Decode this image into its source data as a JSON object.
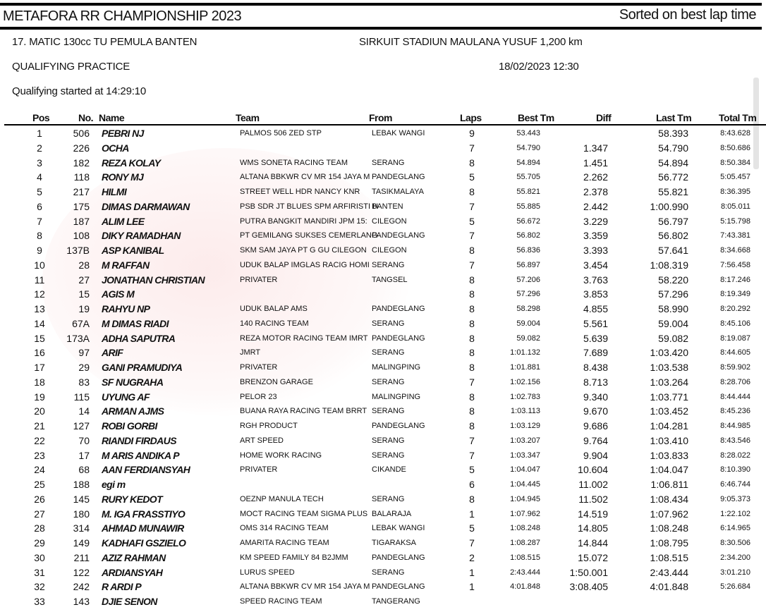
{
  "header": {
    "title": "METAFORA RR CHAMPIONSHIP 2023",
    "sorted": "Sorted on best lap time",
    "class_name": "17. MATIC 130cc TU PEMULA BANTEN",
    "circuit": "SIRKUIT STADIUN MAULANA YUSUF 1,200 km",
    "session": "QUALIFYING PRACTICE",
    "datetime": "18/02/2023 12:30",
    "started": "Qualifying started at 14:29:10"
  },
  "columns": {
    "pos": "Pos",
    "no": "No.",
    "name": "Name",
    "team": "Team",
    "from": "From",
    "laps": "Laps",
    "best": "Best Tm",
    "diff": "Diff",
    "last": "Last Tm",
    "total": "Total Tm"
  },
  "rows": [
    [
      "1",
      "506",
      "PEBRI NJ",
      "PALMOS 506 ZED STP",
      "LEBAK WANGI",
      "9",
      "53.443",
      "",
      "58.393",
      "8:43.628"
    ],
    [
      "2",
      "226",
      "OCHA",
      "",
      "",
      "7",
      "54.790",
      "1.347",
      "54.790",
      "8:50.686"
    ],
    [
      "3",
      "182",
      "REZA KOLAY",
      "WMS SONETA RACING TEAM",
      "SERANG",
      "8",
      "54.894",
      "1.451",
      "54.894",
      "8:50.384"
    ],
    [
      "4",
      "118",
      "RONY MJ",
      "ALTANA BBKWR CV MR 154 JAYA M",
      "PANDEGLANG",
      "5",
      "55.705",
      "2.262",
      "56.772",
      "5:05.457"
    ],
    [
      "5",
      "217",
      "HILMI",
      "STREET WELL HDR NANCY KNR",
      "TASIKMALAYA",
      "8",
      "55.821",
      "2.378",
      "55.821",
      "8:36.395"
    ],
    [
      "6",
      "175",
      "DIMAS DARMAWAN",
      "PSB SDR JT BLUES SPM ARFIRISTI H",
      "BANTEN",
      "7",
      "55.885",
      "2.442",
      "1:00.990",
      "8:05.011"
    ],
    [
      "7",
      "187",
      "ALIM LEE",
      "PUTRA BANGKIT MANDIRI JPM 15:",
      "CILEGON",
      "5",
      "56.672",
      "3.229",
      "56.797",
      "5:15.798"
    ],
    [
      "8",
      "108",
      "DIKY RAMADHAN",
      "PT GEMILANG SUKSES CEMERLANG",
      "PANDEGLANG",
      "7",
      "56.802",
      "3.359",
      "56.802",
      "7:43.381"
    ],
    [
      "9",
      "137B",
      "ASP KANIBAL",
      "SKM SAM JAYA PT G GU CILEGON",
      "CILEGON",
      "8",
      "56.836",
      "3.393",
      "57.641",
      "8:34.668"
    ],
    [
      "10",
      "28",
      "M RAFFAN",
      "UDUK BALAP IMGLAS RACIG HOMI",
      "SERANG",
      "7",
      "56.897",
      "3.454",
      "1:08.319",
      "7:56.458"
    ],
    [
      "11",
      "27",
      "JONATHAN CHRISTIAN",
      "PRIVATER",
      "TANGSEL",
      "8",
      "57.206",
      "3.763",
      "58.220",
      "8:17.246"
    ],
    [
      "12",
      "15",
      "AGIS M",
      "",
      "",
      "8",
      "57.296",
      "3.853",
      "57.296",
      "8:19.349"
    ],
    [
      "13",
      "19",
      "RAHYU NP",
      "UDUK BALAP AMS",
      "PANDEGLANG",
      "8",
      "58.298",
      "4.855",
      "58.990",
      "8:20.292"
    ],
    [
      "14",
      "67A",
      "M DIMAS RIADI",
      "140 RACING TEAM",
      "SERANG",
      "8",
      "59.004",
      "5.561",
      "59.004",
      "8:45.106"
    ],
    [
      "15",
      "173A",
      "ADHA SAPUTRA",
      "REZA MOTOR RACING TEAM IMRT",
      "PANDEGLANG",
      "8",
      "59.082",
      "5.639",
      "59.082",
      "8:19.087"
    ],
    [
      "16",
      "97",
      "ARIF",
      "JMRT",
      "SERANG",
      "8",
      "1:01.132",
      "7.689",
      "1:03.420",
      "8:44.605"
    ],
    [
      "17",
      "29",
      "GANI PRAMUDIYA",
      "PRIVATER",
      "MALINGPING",
      "8",
      "1:01.881",
      "8.438",
      "1:03.538",
      "8:59.902"
    ],
    [
      "18",
      "83",
      "SF NUGRAHA",
      "BRENZON GARAGE",
      "SERANG",
      "7",
      "1:02.156",
      "8.713",
      "1:03.264",
      "8:28.706"
    ],
    [
      "19",
      "115",
      "UYUNG AF",
      "PELOR 23",
      "MALINGPING",
      "8",
      "1:02.783",
      "9.340",
      "1:03.771",
      "8:44.444"
    ],
    [
      "20",
      "14",
      "ARMAN AJMS",
      "BUANA RAYA RACING TEAM BRRT",
      "SERANG",
      "8",
      "1:03.113",
      "9.670",
      "1:03.452",
      "8:45.236"
    ],
    [
      "21",
      "127",
      "ROBI GORBI",
      "RGH PRODUCT",
      "PANDEGLANG",
      "8",
      "1:03.129",
      "9.686",
      "1:04.281",
      "8:44.985"
    ],
    [
      "22",
      "70",
      "RIANDI FIRDAUS",
      "ART SPEED",
      "SERANG",
      "7",
      "1:03.207",
      "9.764",
      "1:03.410",
      "8:43.546"
    ],
    [
      "23",
      "17",
      "M ARIS ANDIKA P",
      "HOME WORK RACING",
      "SERANG",
      "7",
      "1:03.347",
      "9.904",
      "1:03.833",
      "8:28.022"
    ],
    [
      "24",
      "68",
      "AAN FERDIANSYAH",
      "PRIVATER",
      "CIKANDE",
      "5",
      "1:04.047",
      "10.604",
      "1:04.047",
      "8:10.390"
    ],
    [
      "25",
      "188",
      "egi m",
      "",
      "",
      "6",
      "1:04.445",
      "11.002",
      "1:06.811",
      "6:46.744"
    ],
    [
      "26",
      "145",
      "RURY KEDOT",
      "OEZNP MANULA TECH",
      "SERANG",
      "8",
      "1:04.945",
      "11.502",
      "1:08.434",
      "9:05.373"
    ],
    [
      "27",
      "180",
      "M. IGA FRASSTIYO",
      "MOCT RACING TEAM SIGMA PLUS",
      "BALARAJA",
      "1",
      "1:07.962",
      "14.519",
      "1:07.962",
      "1:22.102"
    ],
    [
      "28",
      "314",
      "AHMAD MUNAWIR",
      "OMS 314 RACING TEAM",
      "LEBAK WANGI",
      "5",
      "1:08.248",
      "14.805",
      "1:08.248",
      "6:14.965"
    ],
    [
      "29",
      "149",
      "KADHAFI GSZIELO",
      "AMARITA RACING TEAM",
      "TIGARAKSA",
      "7",
      "1:08.287",
      "14.844",
      "1:08.795",
      "8:30.506"
    ],
    [
      "30",
      "211",
      "AZIZ RAHMAN",
      "KM SPEED FAMILY 84 B2JMM",
      "PANDEGLANG",
      "2",
      "1:08.515",
      "15.072",
      "1:08.515",
      "2:34.200"
    ],
    [
      "31",
      "122",
      "ARDIANSYAH",
      "LURUS SPEED",
      "SERANG",
      "1",
      "2:43.444",
      "1:50.001",
      "2:43.444",
      "3:01.210"
    ],
    [
      "32",
      "242",
      "R ARDI P",
      "ALTANA BBKWR CV MR 154 JAYA M",
      "PANDEGLANG",
      "1",
      "4:01.848",
      "3:08.405",
      "4:01.848",
      "5:26.684"
    ],
    [
      "33",
      "143",
      "DJIE SENON",
      "SPEED RACING TEAM",
      "TANGERANG",
      "",
      "",
      "",
      "",
      ""
    ]
  ]
}
